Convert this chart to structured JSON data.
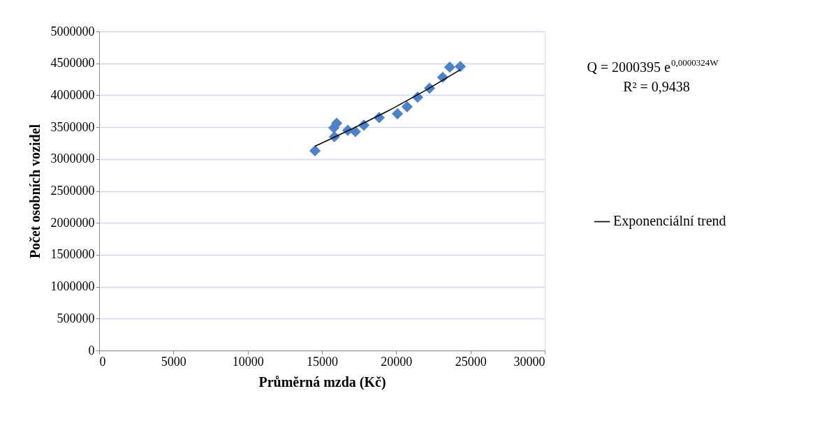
{
  "chart_data": {
    "type": "scatter",
    "xlabel": "Průměrná mzda (Kč)",
    "ylabel": "Počet osobních vozidel",
    "xlim": [
      0,
      30000
    ],
    "xticks": [
      0,
      5000,
      10000,
      15000,
      20000,
      25000,
      30000
    ],
    "ylim": [
      0,
      5000000
    ],
    "yticks": [
      0,
      500000,
      1000000,
      1500000,
      2000000,
      2500000,
      3000000,
      3500000,
      4000000,
      4500000,
      5000000
    ],
    "grid": "y",
    "legend": "right",
    "annotations": [
      "Q = 2000395 e$^{0,0000324W}$",
      "R² = 0,9438"
    ],
    "series": [
      {
        "color": "#4f81c7",
        "marker": "diamond",
        "x": [
          14530,
          15800,
          15840,
          15990,
          16740,
          17250,
          17820,
          18850,
          20080,
          20730,
          21440,
          22240,
          23130,
          23600,
          24310
        ],
        "values": [
          3130000,
          3490000,
          3350000,
          3560000,
          3450000,
          3430000,
          3530000,
          3650000,
          3710000,
          3820000,
          3970000,
          4110000,
          4280000,
          4440000,
          4450000
        ]
      },
      {
        "type": "line",
        "name": "Exponenciální trend",
        "color": "#000000",
        "line_style": "solid",
        "x": [
          14530,
          17000,
          19500,
          22000,
          24310
        ],
        "values": [
          3200000,
          3470000,
          3760000,
          4080000,
          4400000
        ]
      }
    ]
  }
}
